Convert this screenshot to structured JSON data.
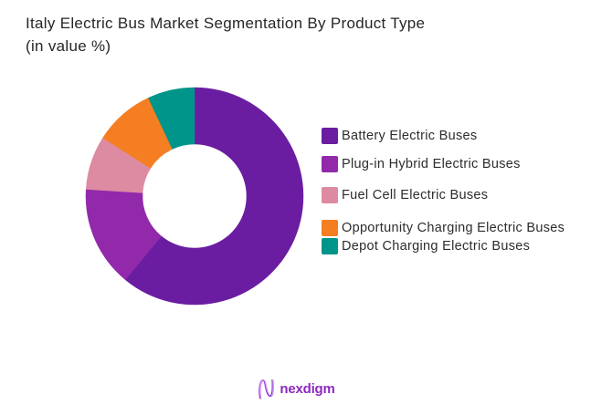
{
  "chart_data": {
    "type": "pie",
    "variant": "donut",
    "title": "Italy Electric Bus Market Segmentation By Product Type",
    "subtitle": "(in value %)",
    "unit": "%",
    "categories": [
      "Battery Electric Buses",
      "Plug-in Hybrid Electric Buses",
      "Fuel Cell Electric Buses",
      "Opportunity Charging Electric Buses",
      "Depot Charging Electric Buses"
    ],
    "values": [
      61,
      15,
      8,
      9,
      7
    ],
    "colors": [
      "#6a1da1",
      "#9229ab",
      "#dd8ba2",
      "#f57e22",
      "#00958a"
    ],
    "start_angle_deg": 0,
    "direction": "clockwise",
    "inner_radius_ratio": 0.48,
    "legend_position": "right",
    "data_labels_shown": false
  },
  "brand": {
    "logo_text": "nexdigm",
    "logo_color": "#8d28c0"
  }
}
